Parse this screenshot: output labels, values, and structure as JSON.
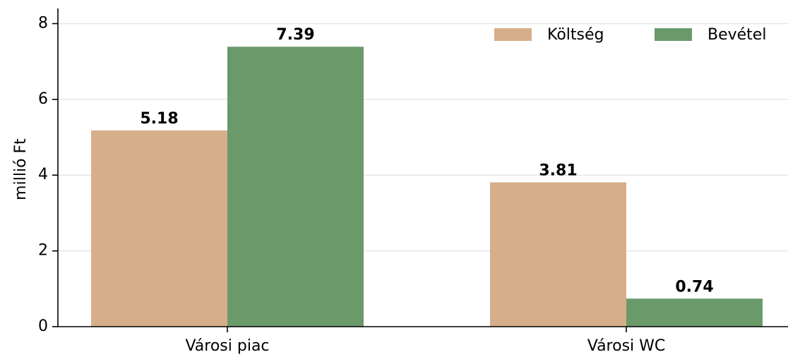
{
  "chart_data": {
    "type": "bar",
    "categories": [
      "Városi piac",
      "Városi WC"
    ],
    "series": [
      {
        "name": "Költség",
        "values": [
          5.18,
          3.81
        ],
        "color": "#d7ae8a"
      },
      {
        "name": "Bevétel",
        "values": [
          7.39,
          0.74
        ],
        "color": "#6a9a69"
      }
    ],
    "data_labels": [
      [
        "5.18",
        "3.81"
      ],
      [
        "7.39",
        "0.74"
      ]
    ],
    "ylabel": "millió Ft",
    "xlabel": "",
    "ylim": [
      0,
      8.4
    ],
    "yticks": [
      0,
      2,
      4,
      6,
      8
    ],
    "grid": "horizontal",
    "legend": "top-right"
  }
}
